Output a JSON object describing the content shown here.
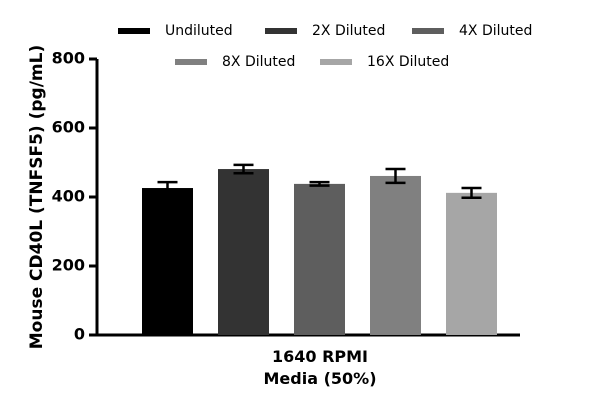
{
  "chart_data": {
    "type": "bar",
    "y_label": "Mouse CD40L (TNFSF5) (pg/mL)",
    "categories": [
      "1640 RPMI Media (50%)"
    ],
    "series": [
      {
        "name": "Undiluted",
        "color": "#000000",
        "values": [
          426
        ],
        "errors": [
          17
        ]
      },
      {
        "name": "2X Diluted",
        "color": "#333333",
        "values": [
          481
        ],
        "errors": [
          12
        ]
      },
      {
        "name": "4X Diluted",
        "color": "#5e5e5e",
        "values": [
          438
        ],
        "errors": [
          5
        ]
      },
      {
        "name": "8X Diluted",
        "color": "#808080",
        "values": [
          461
        ],
        "errors": [
          20
        ]
      },
      {
        "name": "16X Diluted",
        "color": "#a6a6a6",
        "values": [
          412
        ],
        "errors": [
          14
        ]
      }
    ],
    "ylim": [
      0,
      800
    ],
    "yticks": [
      0,
      200,
      400,
      600,
      800
    ]
  }
}
